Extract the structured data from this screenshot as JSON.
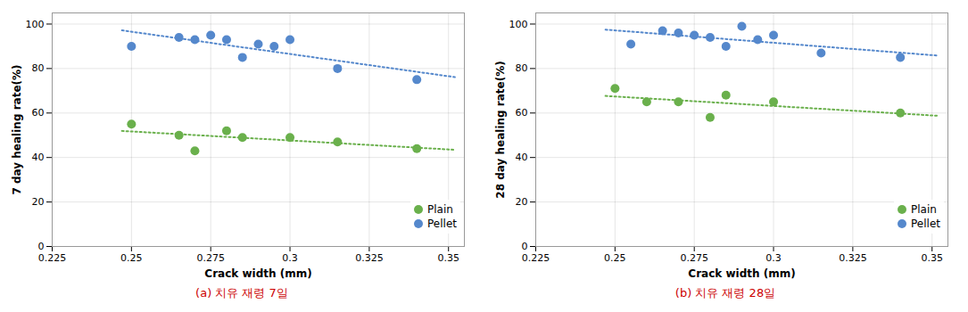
{
  "chart_data": [
    {
      "type": "scatter",
      "x_label": "Crack width (mm)",
      "y_label": "7 day healing rate(%)",
      "annotations": [
        {
          "text": "(a) 치유 재령 7일",
          "color": "#cc0000"
        }
      ],
      "xlim": [
        0.225,
        0.355
      ],
      "xticks": [
        0.225,
        0.25,
        0.275,
        0.3,
        0.325,
        0.35
      ],
      "ylim": [
        0,
        105
      ],
      "yticks": [
        0,
        20,
        40,
        60,
        80,
        100
      ],
      "grid": true,
      "legend": "lower right",
      "series": [
        {
          "name": "Plain",
          "color": "#6ab04c",
          "marker": "circle",
          "x": [
            0.25,
            0.265,
            0.27,
            0.28,
            0.285,
            0.3,
            0.315,
            0.34
          ],
          "values": [
            55,
            50,
            43,
            52,
            49,
            49,
            47,
            44
          ]
        },
        {
          "name": "Pellet",
          "color": "#5588cc",
          "marker": "circle",
          "x": [
            0.25,
            0.265,
            0.27,
            0.275,
            0.28,
            0.285,
            0.29,
            0.295,
            0.3,
            0.315,
            0.34
          ],
          "values": [
            90,
            94,
            93,
            95,
            93,
            85,
            91,
            90,
            93,
            80,
            75
          ]
        },
        {
          "type": "line",
          "line_style": "dotted",
          "color": "#6ab04c",
          "x": [
            0.247,
            0.352
          ],
          "values": [
            51.9487,
            43.4626
          ]
        },
        {
          "type": "line",
          "line_style": "dotted",
          "color": "#5588cc",
          "x": [
            0.247,
            0.352
          ],
          "values": [
            97.1545,
            76.1312
          ]
        }
      ]
    },
    {
      "type": "scatter",
      "x_label": "Crack width (mm)",
      "y_label": "28 day healing rate(%)",
      "annotations": [
        {
          "text": "(b) 치유 재령 28일",
          "color": "#cc0000"
        }
      ],
      "xlim": [
        0.225,
        0.355
      ],
      "xticks": [
        0.225,
        0.25,
        0.275,
        0.3,
        0.325,
        0.35
      ],
      "ylim": [
        0,
        105
      ],
      "yticks": [
        0,
        20,
        40,
        60,
        80,
        100
      ],
      "grid": true,
      "legend": "lower right",
      "series": [
        {
          "name": "Plain",
          "color": "#6ab04c",
          "marker": "circle",
          "x": [
            0.25,
            0.26,
            0.27,
            0.28,
            0.285,
            0.3,
            0.34
          ],
          "values": [
            71,
            65,
            65,
            58,
            68,
            65,
            60
          ]
        },
        {
          "name": "Pellet",
          "color": "#5588cc",
          "marker": "circle",
          "x": [
            0.255,
            0.265,
            0.27,
            0.275,
            0.28,
            0.285,
            0.29,
            0.295,
            0.3,
            0.315,
            0.34
          ],
          "values": [
            91,
            97,
            96,
            95,
            94,
            90,
            99,
            93,
            95,
            87,
            85
          ]
        },
        {
          "type": "line",
          "line_style": "dotted",
          "color": "#6ab04c",
          "x": [
            0.247,
            0.352
          ],
          "values": [
            67.6851,
            58.7454
          ]
        },
        {
          "type": "line",
          "line_style": "dotted",
          "color": "#5588cc",
          "x": [
            0.247,
            0.352
          ],
          "values": [
            97.4909,
            85.8088
          ]
        }
      ]
    }
  ]
}
